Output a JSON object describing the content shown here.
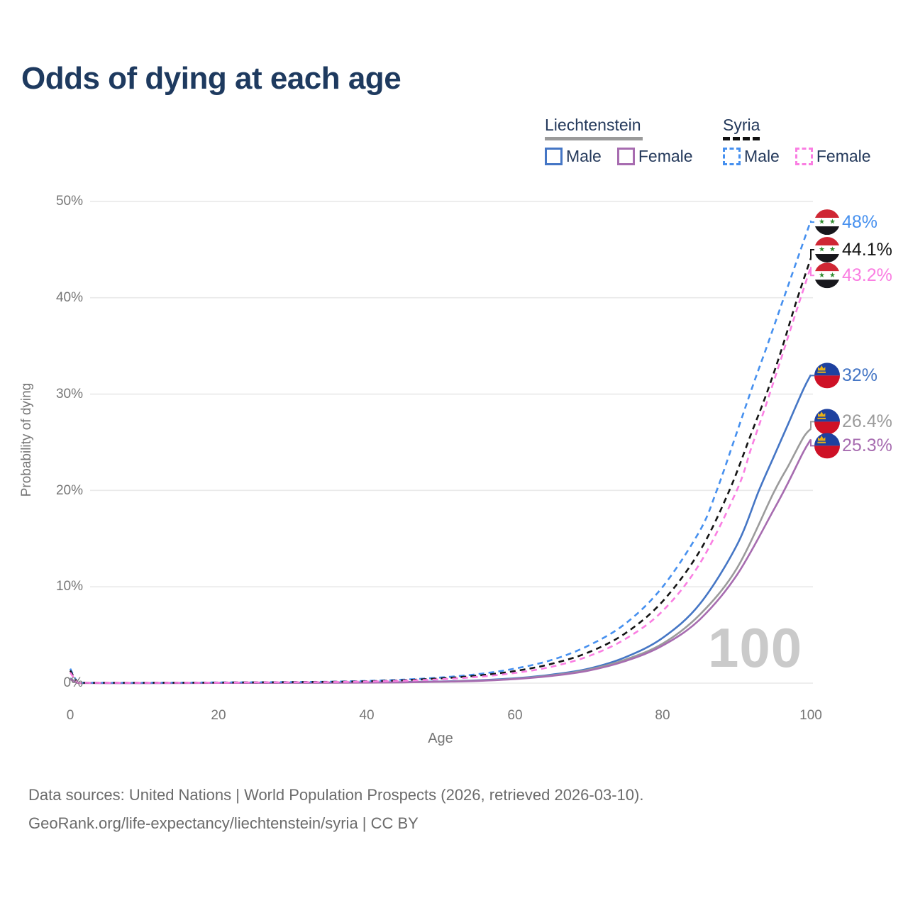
{
  "title": "Odds of dying at each age",
  "legend": {
    "groups": [
      {
        "label": "Liechtenstein",
        "line_style": "solid",
        "items": [
          {
            "label": "Male"
          },
          {
            "label": "Female"
          }
        ]
      },
      {
        "label": "Syria",
        "line_style": "dashed",
        "items": [
          {
            "label": "Male"
          },
          {
            "label": "Female"
          }
        ]
      }
    ]
  },
  "colors": {
    "title": "#1e3a5f",
    "legend_text": "#24395b",
    "axis_text": "#767676",
    "grid": "#e9e9e9",
    "footer_text": "#6b6b6b",
    "watermark": "#cacaca",
    "syria_flag": {
      "red": "#cf2734",
      "white": "#ffffff",
      "black": "#17171c",
      "star_green": "#2e8b2e"
    },
    "liechtenstein_flag": {
      "blue": "#1e419f",
      "red": "#ce1126",
      "crown_gold": "#e7b019"
    }
  },
  "watermark": "100",
  "footer": {
    "line1": "Data sources: United Nations | World Population Prospects (2026, retrieved 2026-03-10).",
    "line2": "GeoRank.org/life-expectancy/liechtenstein/syria | CC BY"
  },
  "chart_data": {
    "type": "line",
    "title": "Odds of dying at each age",
    "xlabel": "Age",
    "ylabel": "Probability of dying",
    "xlim": [
      0,
      100
    ],
    "ylim": [
      0,
      50
    ],
    "x_ticks": [
      0,
      20,
      40,
      60,
      80,
      100
    ],
    "y_ticks": [
      "0%",
      "10%",
      "20%",
      "30%",
      "40%",
      "50%"
    ],
    "grid": "horizontal-only",
    "legend_position": "top-right",
    "series": [
      {
        "name": "Syria Male",
        "country": "Syria",
        "sex": "male",
        "color": "#4690ef",
        "dashed": true,
        "end_label": "48%",
        "end_value": 48,
        "points": [
          [
            0,
            1.5
          ],
          [
            1,
            0.1
          ],
          [
            2,
            0.05
          ],
          [
            5,
            0.04
          ],
          [
            10,
            0.04
          ],
          [
            15,
            0.05
          ],
          [
            20,
            0.07
          ],
          [
            25,
            0.09
          ],
          [
            30,
            0.11
          ],
          [
            35,
            0.15
          ],
          [
            40,
            0.23
          ],
          [
            45,
            0.36
          ],
          [
            50,
            0.58
          ],
          [
            55,
            0.93
          ],
          [
            60,
            1.5
          ],
          [
            65,
            2.4
          ],
          [
            70,
            3.9
          ],
          [
            75,
            6.2
          ],
          [
            80,
            10
          ],
          [
            85,
            15.8
          ],
          [
            87.3,
            20
          ],
          [
            90,
            26
          ],
          [
            92,
            30.5
          ],
          [
            94,
            34.8
          ],
          [
            96,
            39.2
          ],
          [
            98,
            43.6
          ],
          [
            100,
            48
          ]
        ]
      },
      {
        "name": "Syria Both sexes",
        "country": "Syria",
        "sex": "all",
        "color": "#141414",
        "dashed": true,
        "end_label": "44.1%",
        "end_value": 44.1,
        "points": [
          [
            0,
            1.3
          ],
          [
            1,
            0.09
          ],
          [
            2,
            0.04
          ],
          [
            5,
            0.035
          ],
          [
            10,
            0.035
          ],
          [
            15,
            0.045
          ],
          [
            20,
            0.06
          ],
          [
            25,
            0.08
          ],
          [
            30,
            0.1
          ],
          [
            35,
            0.13
          ],
          [
            40,
            0.19
          ],
          [
            45,
            0.3
          ],
          [
            50,
            0.49
          ],
          [
            55,
            0.78
          ],
          [
            60,
            1.25
          ],
          [
            65,
            2.0
          ],
          [
            70,
            3.2
          ],
          [
            75,
            5.2
          ],
          [
            80,
            8.5
          ],
          [
            85,
            13.7
          ],
          [
            89,
            20
          ],
          [
            92,
            26
          ],
          [
            94,
            30
          ],
          [
            96,
            34.5
          ],
          [
            98,
            39.5
          ],
          [
            100,
            44.1
          ]
        ]
      },
      {
        "name": "Syria Female",
        "country": "Syria",
        "sex": "female",
        "color": "#fa7ee2",
        "dashed": true,
        "end_label": "43.2%",
        "end_value": 43.2,
        "points": [
          [
            0,
            1.1
          ],
          [
            1,
            0.08
          ],
          [
            2,
            0.035
          ],
          [
            5,
            0.03
          ],
          [
            10,
            0.03
          ],
          [
            15,
            0.04
          ],
          [
            20,
            0.05
          ],
          [
            25,
            0.07
          ],
          [
            30,
            0.09
          ],
          [
            35,
            0.11
          ],
          [
            40,
            0.16
          ],
          [
            45,
            0.25
          ],
          [
            50,
            0.4
          ],
          [
            55,
            0.65
          ],
          [
            60,
            1.05
          ],
          [
            65,
            1.7
          ],
          [
            70,
            2.8
          ],
          [
            75,
            4.6
          ],
          [
            80,
            7.5
          ],
          [
            85,
            12.4
          ],
          [
            90,
            20
          ],
          [
            92,
            24.5
          ],
          [
            94,
            29
          ],
          [
            96,
            33.7
          ],
          [
            98,
            38.5
          ],
          [
            100,
            43.2
          ]
        ]
      },
      {
        "name": "Liechtenstein Male",
        "country": "Liechtenstein",
        "sex": "male",
        "color": "#4576c5",
        "dashed": false,
        "end_label": "32%",
        "end_value": 32,
        "points": [
          [
            0,
            0.5
          ],
          [
            1,
            0.04
          ],
          [
            2,
            0.02
          ],
          [
            5,
            0.015
          ],
          [
            10,
            0.015
          ],
          [
            15,
            0.02
          ],
          [
            20,
            0.03
          ],
          [
            25,
            0.04
          ],
          [
            30,
            0.05
          ],
          [
            35,
            0.06
          ],
          [
            40,
            0.08
          ],
          [
            45,
            0.11
          ],
          [
            50,
            0.17
          ],
          [
            55,
            0.29
          ],
          [
            60,
            0.5
          ],
          [
            65,
            0.88
          ],
          [
            70,
            1.5
          ],
          [
            75,
            2.7
          ],
          [
            80,
            4.7
          ],
          [
            85,
            8.2
          ],
          [
            90,
            14.3
          ],
          [
            93,
            20
          ],
          [
            95,
            23.5
          ],
          [
            97,
            27
          ],
          [
            99,
            30.5
          ],
          [
            100,
            32
          ]
        ]
      },
      {
        "name": "Liechtenstein Both sexes",
        "country": "Liechtenstein",
        "sex": "all",
        "color": "#9b9b9b",
        "dashed": false,
        "end_label": "26.4%",
        "end_value": 26.4,
        "points": [
          [
            0,
            0.45
          ],
          [
            1,
            0.035
          ],
          [
            2,
            0.018
          ],
          [
            5,
            0.013
          ],
          [
            10,
            0.013
          ],
          [
            15,
            0.018
          ],
          [
            20,
            0.025
          ],
          [
            25,
            0.035
          ],
          [
            30,
            0.04
          ],
          [
            35,
            0.05
          ],
          [
            40,
            0.065
          ],
          [
            45,
            0.09
          ],
          [
            50,
            0.15
          ],
          [
            55,
            0.25
          ],
          [
            60,
            0.45
          ],
          [
            65,
            0.8
          ],
          [
            70,
            1.4
          ],
          [
            75,
            2.45
          ],
          [
            80,
            4.1
          ],
          [
            85,
            7.1
          ],
          [
            90,
            11.9
          ],
          [
            95,
            19.8
          ],
          [
            97,
            22.6
          ],
          [
            99,
            25.5
          ],
          [
            100,
            26.4
          ]
        ]
      },
      {
        "name": "Liechtenstein Female",
        "country": "Liechtenstein",
        "sex": "female",
        "color": "#a76cb0",
        "dashed": false,
        "end_label": "25.3%",
        "end_value": 25.3,
        "points": [
          [
            0,
            0.4
          ],
          [
            1,
            0.03
          ],
          [
            2,
            0.015
          ],
          [
            5,
            0.01
          ],
          [
            10,
            0.01
          ],
          [
            15,
            0.014
          ],
          [
            20,
            0.02
          ],
          [
            25,
            0.028
          ],
          [
            30,
            0.035
          ],
          [
            35,
            0.045
          ],
          [
            40,
            0.055
          ],
          [
            45,
            0.08
          ],
          [
            50,
            0.14
          ],
          [
            55,
            0.23
          ],
          [
            60,
            0.42
          ],
          [
            65,
            0.75
          ],
          [
            70,
            1.3
          ],
          [
            75,
            2.3
          ],
          [
            80,
            3.9
          ],
          [
            85,
            6.6
          ],
          [
            90,
            11.2
          ],
          [
            95,
            18
          ],
          [
            97,
            20.9
          ],
          [
            99,
            24
          ],
          [
            100,
            25.3
          ]
        ]
      }
    ]
  }
}
